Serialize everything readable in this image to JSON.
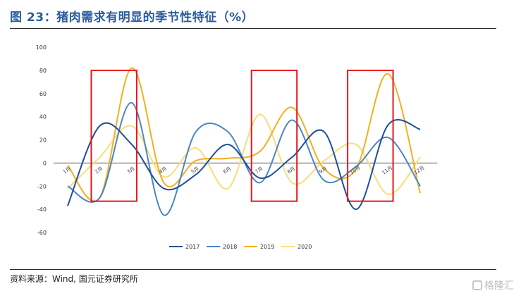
{
  "figure": {
    "title": "图 23：猪肉需求有明显的季节性特征（%）",
    "source": "资料来源：Wind, 国元证券研究所",
    "watermark": "格隆汇"
  },
  "chart_data": {
    "type": "line",
    "categories": [
      "1月",
      "2月",
      "3月",
      "4月",
      "5月",
      "6月",
      "7月",
      "8月",
      "9月",
      "10月",
      "11月",
      "12月"
    ],
    "ylim": [
      -60,
      100
    ],
    "yticks": [
      -60,
      -40,
      -20,
      0,
      20,
      40,
      60,
      80,
      100
    ],
    "grid": false,
    "legend_position": "bottom",
    "series": [
      {
        "name": "2017",
        "color": "#1f4e9c",
        "values": [
          -37,
          32,
          16,
          -22,
          -10,
          16,
          -13,
          5,
          27,
          -40,
          33,
          29
        ]
      },
      {
        "name": "2018",
        "color": "#4a86c5",
        "values": [
          -20,
          -30,
          52,
          -45,
          27,
          27,
          -17,
          37,
          -15,
          -3,
          22,
          -20
        ]
      },
      {
        "name": "2019",
        "color": "#f2b01e",
        "values": [
          -2,
          -30,
          82,
          -17,
          2,
          4,
          10,
          48,
          -5,
          -5,
          77,
          -26
        ]
      },
      {
        "name": "2020",
        "color": "#fbdc7a",
        "values": [
          -22,
          5,
          32,
          -12,
          13,
          -22,
          42,
          -17,
          2,
          16,
          -27,
          5
        ]
      }
    ],
    "highlight_boxes": [
      {
        "from": "2月",
        "to": "3月",
        "color": "#e8161b"
      },
      {
        "from": "7月",
        "to": "8月",
        "color": "#e8161b"
      },
      {
        "from": "10月",
        "to": "11月",
        "color": "#e8161b"
      }
    ]
  }
}
